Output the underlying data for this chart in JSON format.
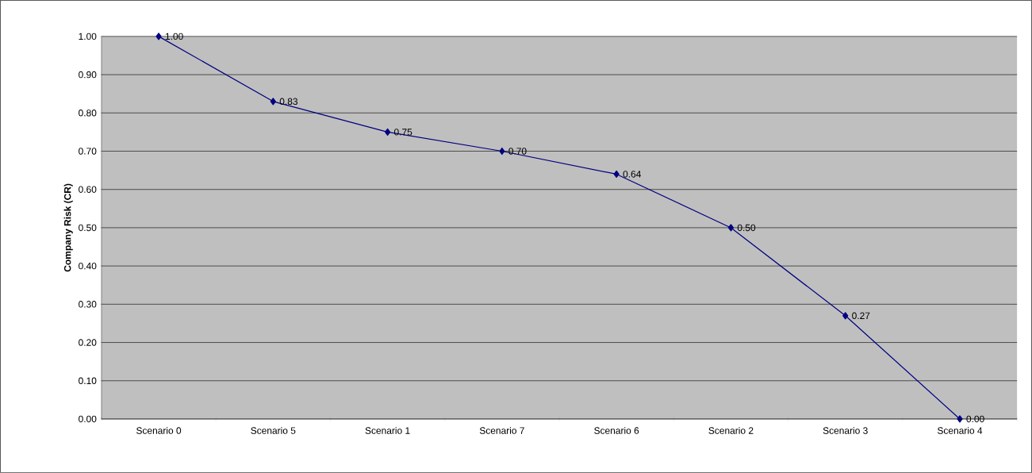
{
  "chart_data": {
    "type": "line",
    "ylabel": "Company Risk (CR)",
    "categories": [
      "Scenario 0",
      "Scenario 5",
      "Scenario 1",
      "Scenario 7",
      "Scenario 6",
      "Scenario 2",
      "Scenario 3",
      "Scenario 4"
    ],
    "series": [
      {
        "color": "#000080",
        "values": [
          1.0,
          0.83,
          0.75,
          0.7,
          0.64,
          0.5,
          0.27,
          0.0
        ],
        "value_labels": [
          "1.00",
          "0.83",
          "0.75",
          "0.70",
          "0.64",
          "0.50",
          "0.27",
          "0.00"
        ]
      }
    ],
    "ylim": [
      0,
      1
    ],
    "yticks": [
      {
        "value": 0,
        "label": "0.00"
      },
      {
        "value": 0.1,
        "label": "0.10"
      },
      {
        "value": 0.2,
        "label": "0.20"
      },
      {
        "value": 0.3,
        "label": "0.30"
      },
      {
        "value": 0.4,
        "label": "0.40"
      },
      {
        "value": 0.5,
        "label": "0.50"
      },
      {
        "value": 0.6,
        "label": "0.60"
      },
      {
        "value": 0.7,
        "label": "0.70"
      },
      {
        "value": 0.8,
        "label": "0.80"
      },
      {
        "value": 0.9,
        "label": "0.90"
      },
      {
        "value": 1,
        "label": "1.00"
      }
    ],
    "grid": "y",
    "marker": "diamond",
    "line_style": "solid",
    "legend": false
  }
}
